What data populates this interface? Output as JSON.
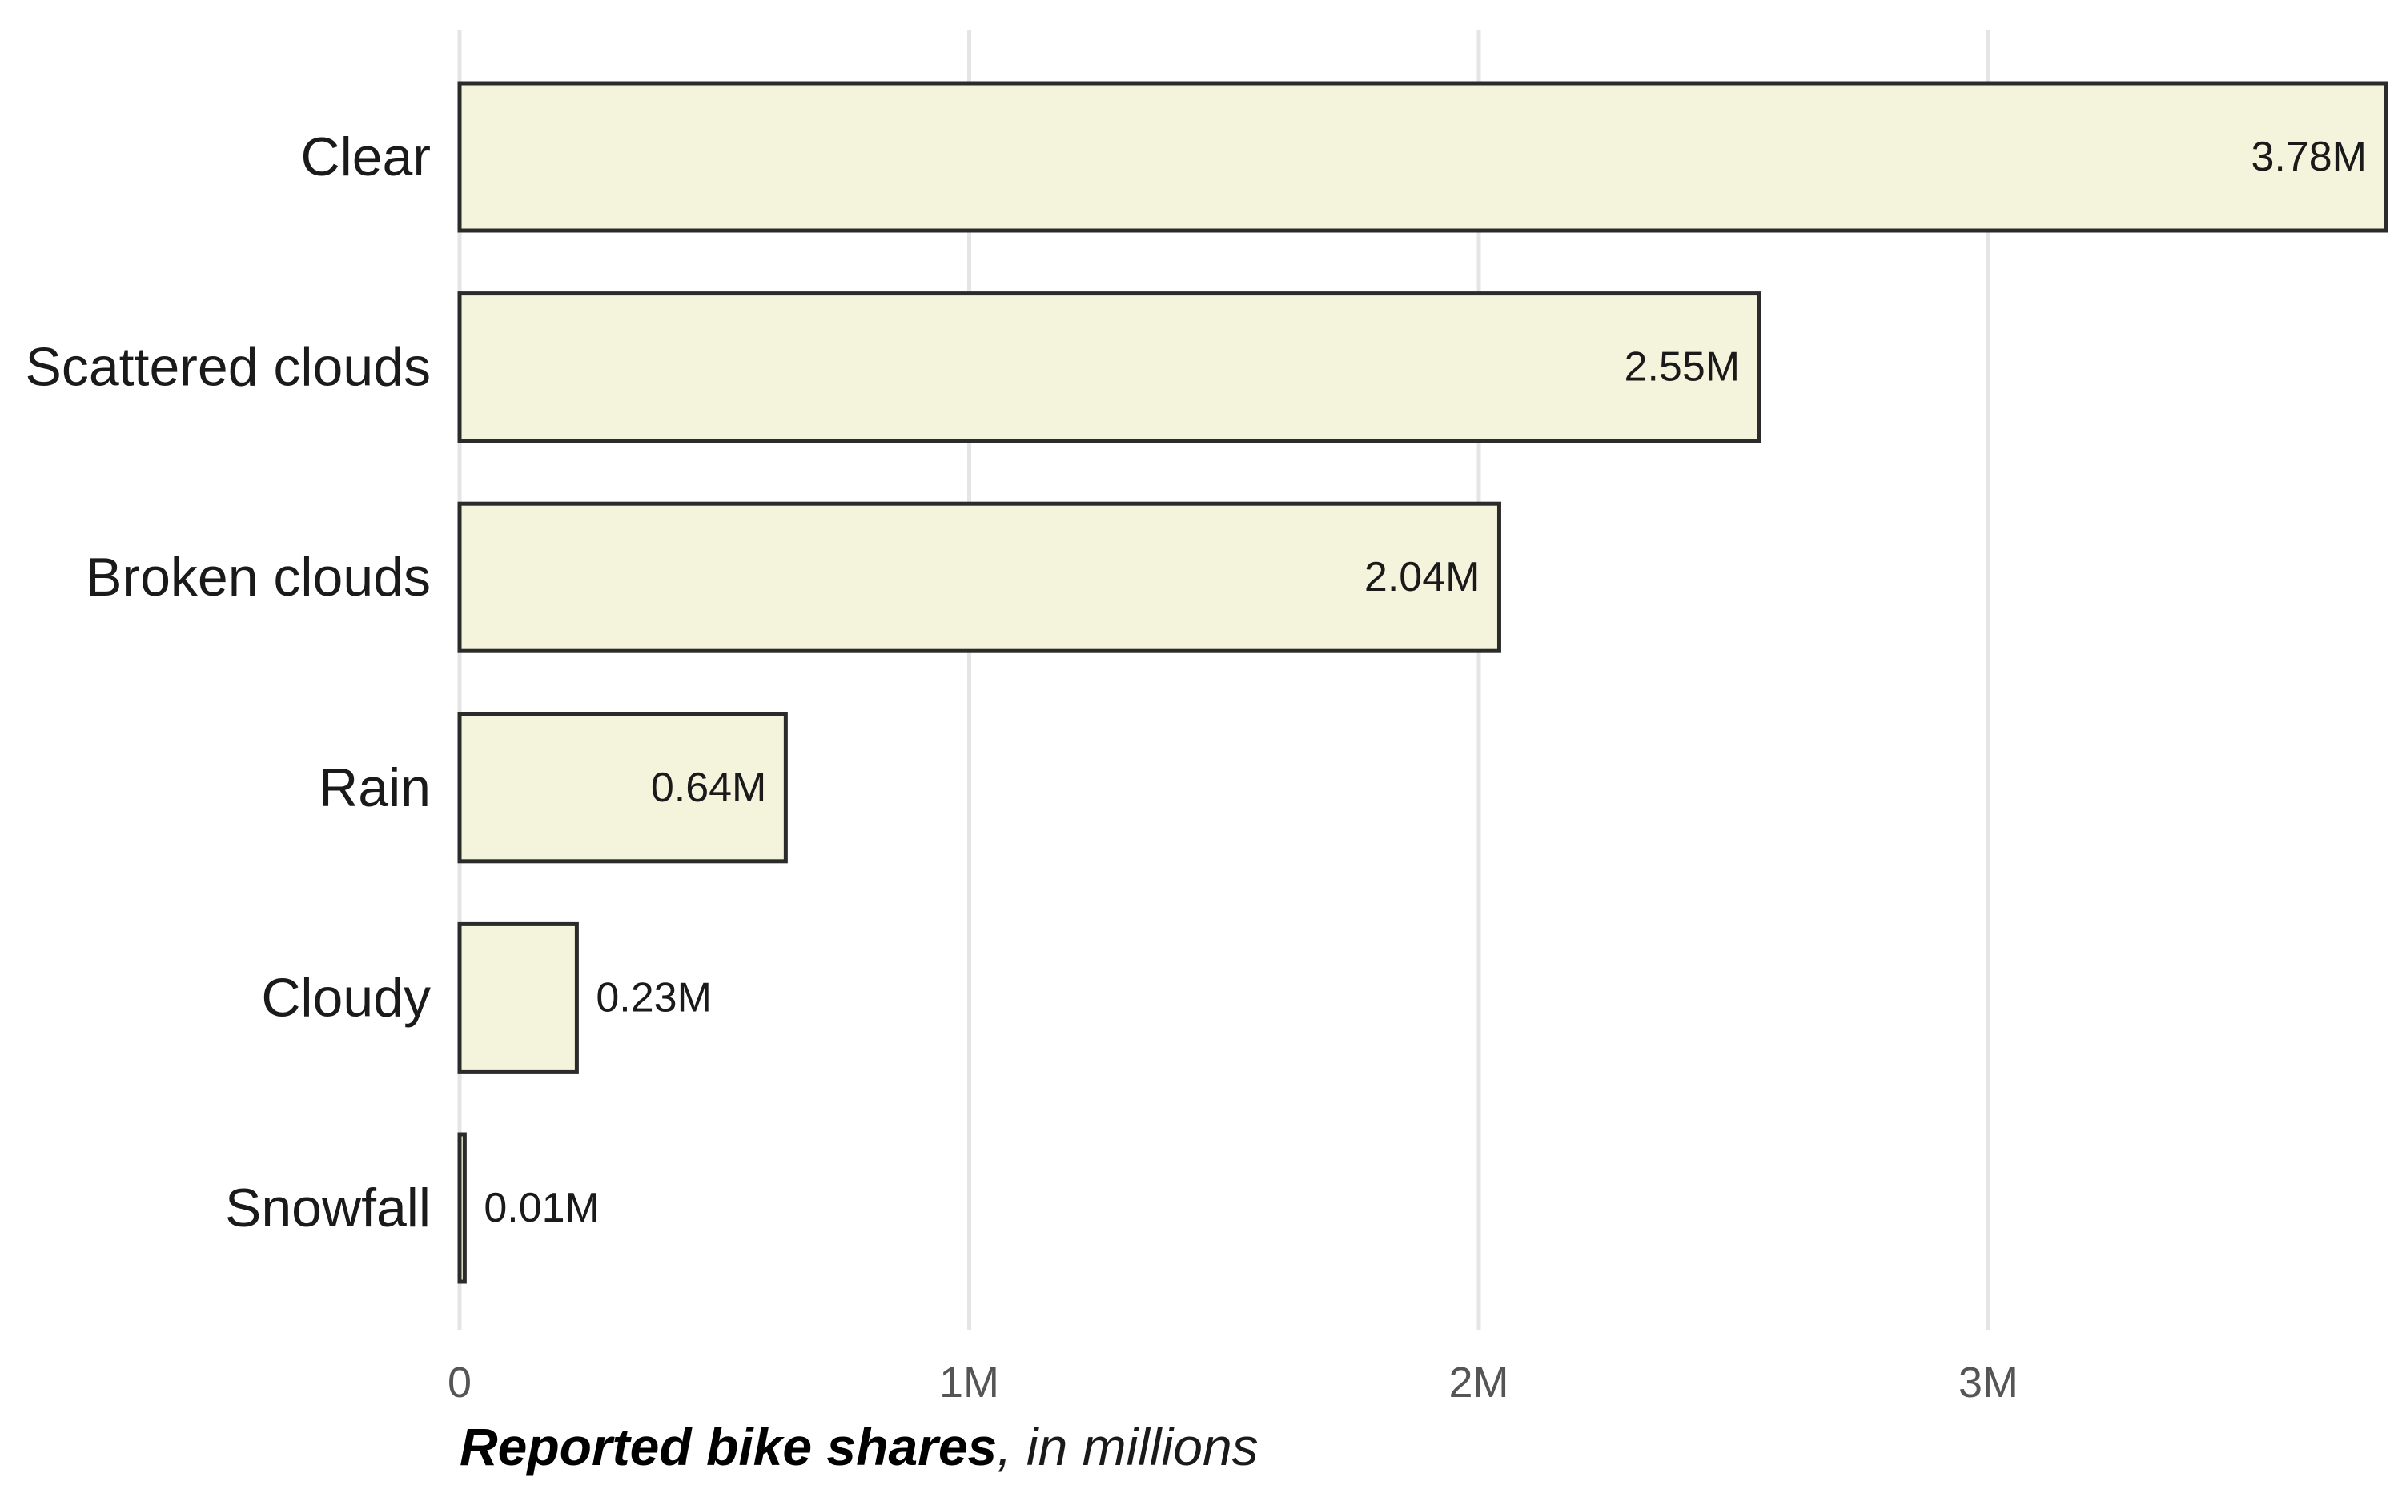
{
  "chart_data": {
    "type": "bar",
    "orientation": "horizontal",
    "categories": [
      "Clear",
      "Scattered clouds",
      "Broken clouds",
      "Rain",
      "Cloudy",
      "Snowfall"
    ],
    "values": [
      3.78,
      2.55,
      2.04,
      0.64,
      0.23,
      0.01
    ],
    "value_labels": [
      "3.78M",
      "2.55M",
      "2.04M",
      "0.64M",
      "0.23M",
      "0.01M"
    ],
    "x_ticks": [
      {
        "value": 0,
        "label": "0"
      },
      {
        "value": 1,
        "label": "1M"
      },
      {
        "value": 2,
        "label": "2M"
      },
      {
        "value": 3,
        "label": "3M"
      }
    ],
    "xlim": [
      0,
      3.78
    ],
    "xlabel_bold": "Reported bike shares",
    "xlabel_rest": ", in millions",
    "grid": "vertical-major",
    "bar_fill": "#f4f4dc",
    "bar_stroke": "#2b2b2b"
  }
}
